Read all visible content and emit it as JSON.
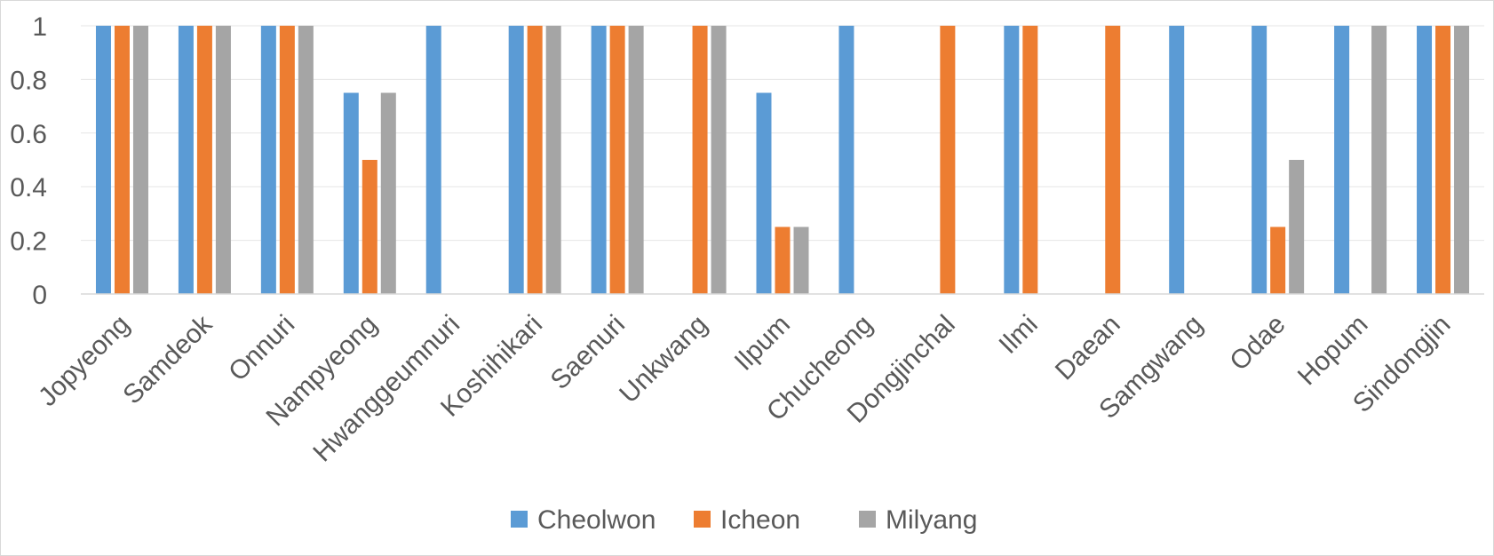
{
  "chart_data": {
    "type": "bar",
    "title": "",
    "xlabel": "",
    "ylabel": "",
    "ylim": [
      0,
      1
    ],
    "yticks": [
      0,
      0.2,
      0.4,
      0.6,
      0.8,
      1
    ],
    "ytick_labels": [
      "0",
      "0.2",
      "0.4",
      "0.6",
      "0.8",
      "1"
    ],
    "grid": true,
    "legend_position": "bottom",
    "categories": [
      "Jopyeong",
      "Samdeok",
      "Onnuri",
      "Nampyeong",
      "Hwanggeumnuri",
      "Koshihikari",
      "Saenuri",
      "Unkwang",
      "Ilpum",
      "Chucheong",
      "Dongjinchal",
      "Ilmi",
      "Daean",
      "Samgwang",
      "Odae",
      "Hopum",
      "Sindongjin"
    ],
    "series": [
      {
        "name": "Cheolwon",
        "color": "#5b9bd5",
        "values": [
          1,
          1,
          1,
          0.75,
          1,
          1,
          1,
          0,
          0.75,
          1,
          0,
          1,
          0,
          1,
          1,
          1,
          1
        ]
      },
      {
        "name": "Icheon",
        "color": "#ed7d31",
        "values": [
          1,
          1,
          1,
          0.5,
          0,
          1,
          1,
          1,
          0.25,
          0,
          1,
          1,
          1,
          0,
          0.25,
          0,
          1
        ]
      },
      {
        "name": "Milyang",
        "color": "#a5a5a5",
        "values": [
          1,
          1,
          1,
          0.75,
          0,
          1,
          1,
          1,
          0.25,
          0,
          0,
          0,
          0,
          0,
          0.5,
          1,
          1
        ]
      }
    ]
  }
}
